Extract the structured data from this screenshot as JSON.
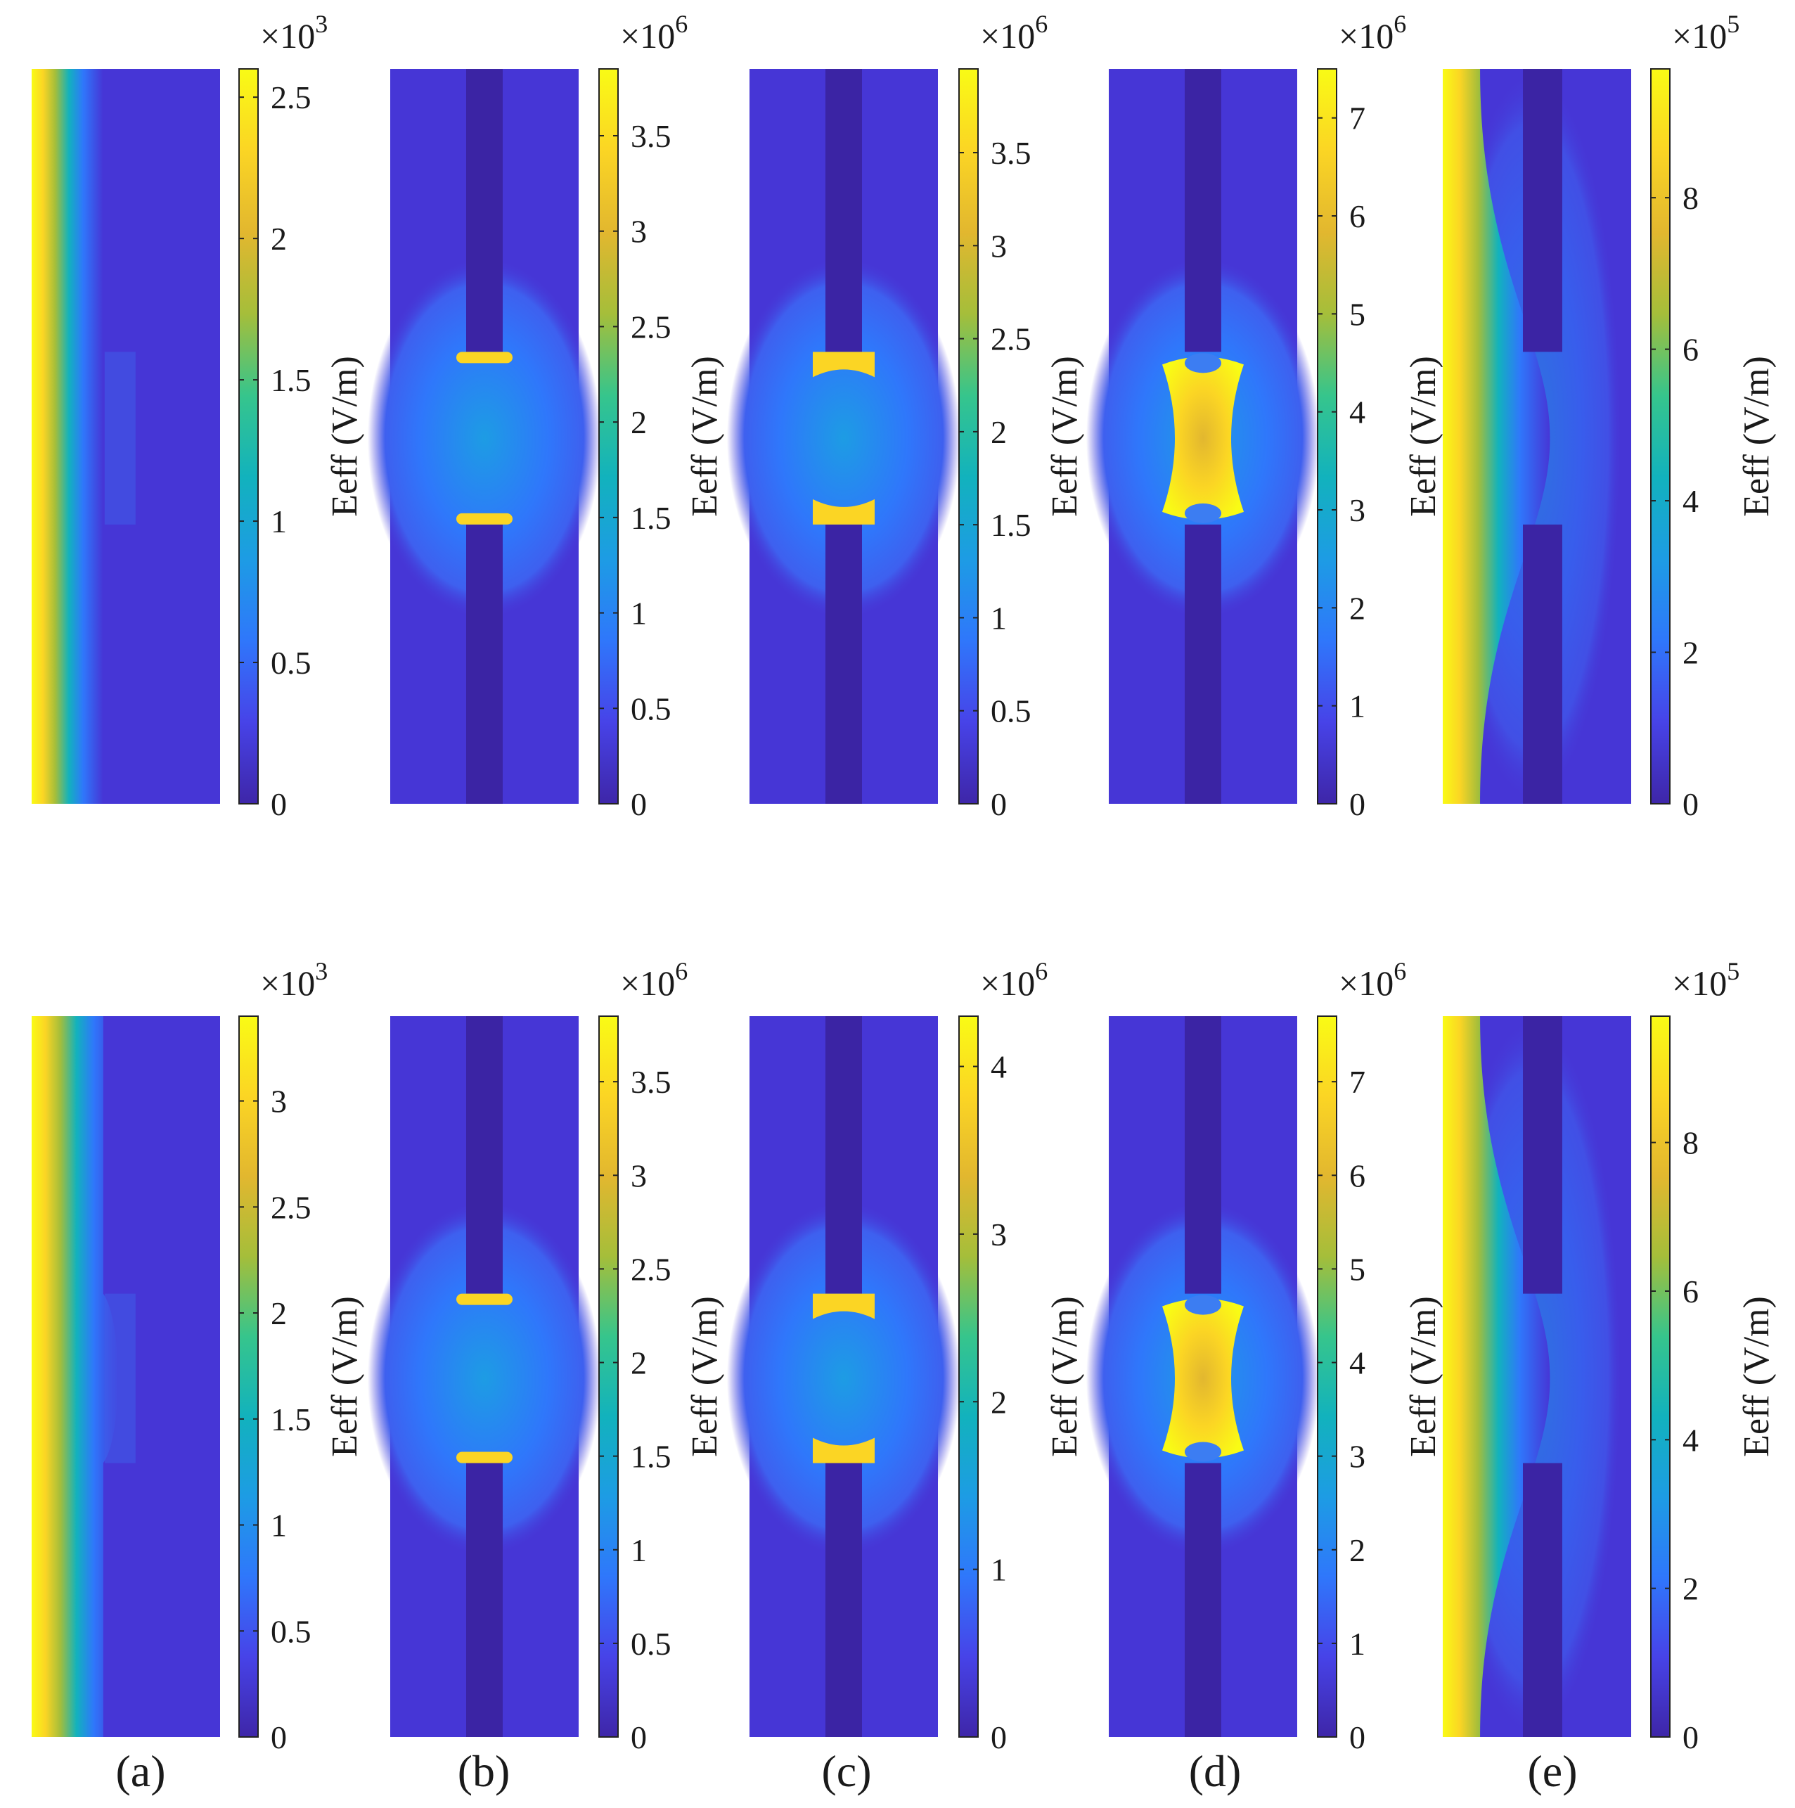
{
  "figure": {
    "colormap": [
      "#3e26a8",
      "#4743e8",
      "#2f77fb",
      "#1d9ce4",
      "#12b2bd",
      "#36c58c",
      "#a5be3a",
      "#e2b72f",
      "#fbd524",
      "#f9fb15"
    ],
    "structure_color": "#3b24a4",
    "background_field_color": "#4636d6"
  },
  "chart_data": [
    {
      "panel": "a",
      "row": "top",
      "type": "heatmap",
      "field_pattern": "source",
      "colorbar_label": "Eeff (V/m)",
      "multiplier": "×10",
      "exponent": "3",
      "clim": [
        0,
        2.6
      ],
      "ticks": [
        "0",
        "0.5",
        "1",
        "1.5",
        "2",
        "2.5"
      ]
    },
    {
      "panel": "b",
      "row": "top",
      "type": "heatmap",
      "field_pattern": "thin-gap",
      "colorbar_label": "Eeff (V/m)",
      "multiplier": "×10",
      "exponent": "6",
      "clim": [
        0,
        3.85
      ],
      "ticks": [
        "0",
        "0.5",
        "1",
        "1.5",
        "2",
        "2.5",
        "3",
        "3.5"
      ]
    },
    {
      "panel": "c",
      "row": "top",
      "type": "heatmap",
      "field_pattern": "cap-gap",
      "colorbar_label": "Eeff (V/m)",
      "multiplier": "×10",
      "exponent": "6",
      "clim": [
        0,
        3.95
      ],
      "ticks": [
        "0",
        "0.5",
        "1",
        "1.5",
        "2",
        "2.5",
        "3",
        "3.5"
      ]
    },
    {
      "panel": "d",
      "row": "top",
      "type": "heatmap",
      "field_pattern": "filled-gap",
      "colorbar_label": "Eeff (V/m)",
      "multiplier": "×10",
      "exponent": "6",
      "clim": [
        0,
        7.5
      ],
      "ticks": [
        "0",
        "1",
        "2",
        "3",
        "4",
        "5",
        "6",
        "7"
      ]
    },
    {
      "panel": "e",
      "row": "top",
      "type": "heatmap",
      "field_pattern": "bulge",
      "colorbar_label": "Eeff (V/m)",
      "multiplier": "×10",
      "exponent": "5",
      "clim": [
        0,
        9.7
      ],
      "ticks": [
        "0",
        "2",
        "4",
        "6",
        "8"
      ]
    },
    {
      "panel": "a",
      "row": "bottom",
      "type": "heatmap",
      "field_pattern": "source-bulge",
      "colorbar_label": "Eeff (V/m)",
      "multiplier": "×10",
      "exponent": "3",
      "clim": [
        0,
        3.4
      ],
      "ticks": [
        "0",
        "0.5",
        "1",
        "1.5",
        "2",
        "2.5",
        "3"
      ]
    },
    {
      "panel": "b",
      "row": "bottom",
      "type": "heatmap",
      "field_pattern": "thin-gap",
      "colorbar_label": "Eeff (V/m)",
      "multiplier": "×10",
      "exponent": "6",
      "clim": [
        0,
        3.85
      ],
      "ticks": [
        "0",
        "0.5",
        "1",
        "1.5",
        "2",
        "2.5",
        "3",
        "3.5"
      ]
    },
    {
      "panel": "c",
      "row": "bottom",
      "type": "heatmap",
      "field_pattern": "cap-gap",
      "colorbar_label": "Eeff (V/m)",
      "multiplier": "×10",
      "exponent": "6",
      "clim": [
        0,
        4.3
      ],
      "ticks": [
        "0",
        "1",
        "2",
        "3",
        "4"
      ]
    },
    {
      "panel": "d",
      "row": "bottom",
      "type": "heatmap",
      "field_pattern": "filled-gap",
      "colorbar_label": "Eeff (V/m)",
      "multiplier": "×10",
      "exponent": "6",
      "clim": [
        0,
        7.7
      ],
      "ticks": [
        "0",
        "1",
        "2",
        "3",
        "4",
        "5",
        "6",
        "7"
      ]
    },
    {
      "panel": "e",
      "row": "bottom",
      "type": "heatmap",
      "field_pattern": "bulge",
      "colorbar_label": "Eeff (V/m)",
      "multiplier": "×10",
      "exponent": "5",
      "clim": [
        0,
        9.7
      ],
      "ticks": [
        "0",
        "2",
        "4",
        "6",
        "8"
      ]
    }
  ],
  "captions": [
    "(a)",
    "(b)",
    "(c)",
    "(d)",
    "(e)"
  ]
}
